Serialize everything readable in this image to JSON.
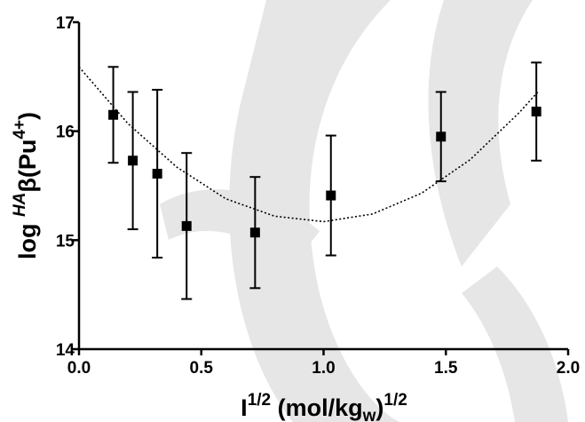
{
  "chart_data": {
    "type": "scatter",
    "x_label": [
      "I",
      "1/2",
      " (mol/kg",
      "w",
      ")",
      "1/2"
    ],
    "y_label": [
      "log ",
      "HA",
      "β(Pu",
      "4+",
      ")"
    ],
    "x": [
      0.14,
      0.22,
      0.32,
      0.44,
      0.72,
      1.03,
      1.48,
      1.87
    ],
    "values": [
      16.15,
      15.73,
      15.61,
      15.13,
      15.07,
      15.41,
      15.95,
      16.18
    ],
    "errors": [
      0.44,
      0.63,
      0.77,
      0.67,
      0.51,
      0.55,
      0.41,
      0.45
    ],
    "color": "#000000",
    "fit": {
      "x": [
        0,
        0.2,
        0.4,
        0.6,
        0.8,
        1.0,
        1.2,
        1.4,
        1.6,
        1.8,
        1.88
      ],
      "y": [
        16.59,
        16.07,
        15.67,
        15.38,
        15.22,
        15.17,
        15.24,
        15.43,
        15.74,
        16.17,
        16.37
      ]
    },
    "xlim": [
      0,
      2
    ],
    "ylim": [
      14,
      17
    ],
    "xticks": [
      {
        "value": 0,
        "label": "0.0"
      },
      0.5,
      {
        "value": 1,
        "label": "1.0"
      },
      1.5,
      {
        "value": 2,
        "label": "2.0"
      }
    ],
    "yticks": [
      14,
      15,
      16,
      17
    ]
  }
}
